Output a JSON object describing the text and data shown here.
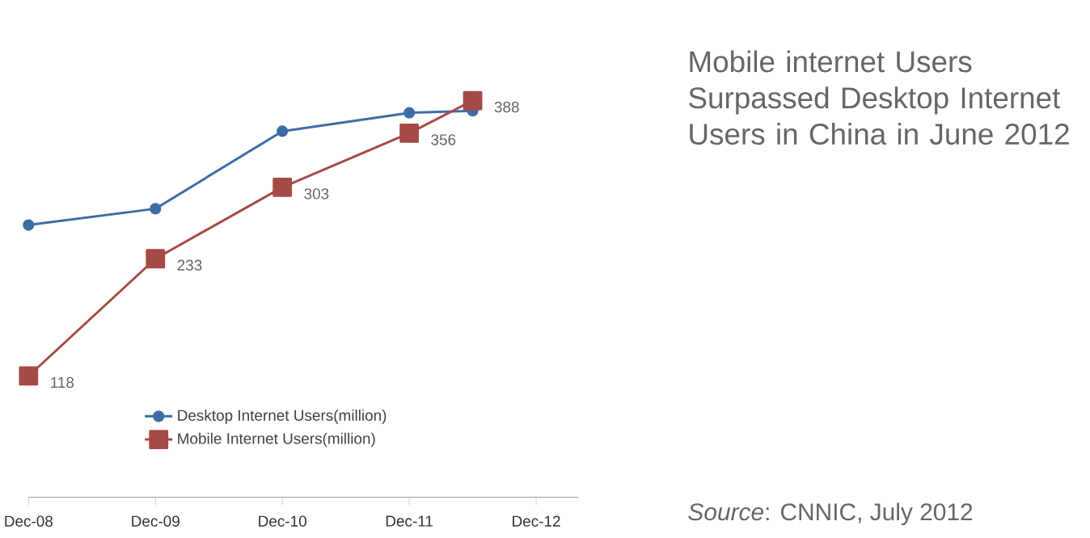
{
  "chart_data": {
    "type": "line",
    "title": "Mobile internet Users Surpassed Desktop Internet Users in China in June 2012",
    "annotations": [
      "*Source*: CNNIC, July 2012"
    ],
    "x": [
      "2008-12",
      "2009-12",
      "2010-12",
      "2011-12",
      "2012-06"
    ],
    "xlim": [
      "2008-12",
      "2013-04"
    ],
    "xticks": [
      {
        "value": "2008-12",
        "label": "Dec-08"
      },
      {
        "value": "2009-12",
        "label": "Dec-09"
      },
      {
        "value": "2010-12",
        "label": "Dec-10"
      },
      {
        "value": "2011-12",
        "label": "Dec-11"
      },
      {
        "value": "2012-12",
        "label": "Dec-12"
      }
    ],
    "tick_labels": "x",
    "legend": "bottom",
    "series": [
      {
        "name": "Desktop Internet Users(million)",
        "color": "#3e6ca6",
        "marker": "circle",
        "values": [
          266,
          282,
          358,
          376,
          378
        ]
      },
      {
        "name": "Mobile Internet Users(million)",
        "color": "#a64a47",
        "marker": "square",
        "values": [
          118,
          233,
          303,
          356,
          388
        ],
        "value_labels": [
          "118",
          "233",
          "303",
          "356",
          "388"
        ]
      }
    ]
  }
}
